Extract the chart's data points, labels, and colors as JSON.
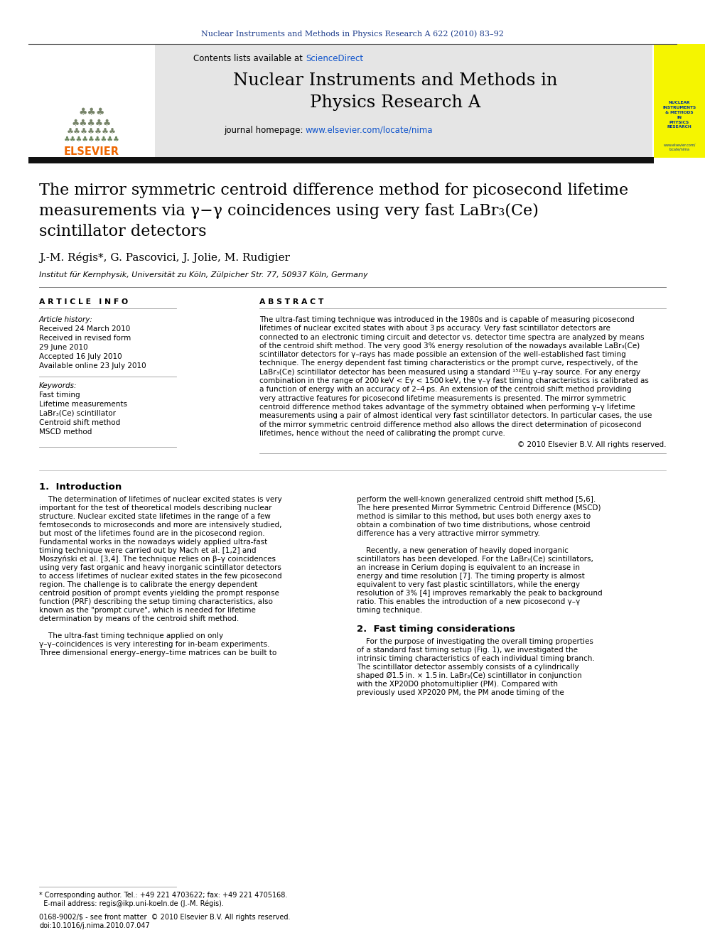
{
  "journal_ref": "Nuclear Instruments and Methods in Physics Research A 622 (2010) 83–92",
  "journal_title_line1": "Nuclear Instruments and Methods in",
  "journal_title_line2": "Physics Research A",
  "paper_title_line1": "The mirror symmetric centroid difference method for picosecond lifetime",
  "paper_title_line2": "measurements via γ−γ coincidences using very fast LaBr₃(Ce)",
  "paper_title_line3": "scintillator detectors",
  "authors": "J.-M. Régis*, G. Pascovici, J. Jolie, M. Rudigier",
  "affiliation": "Institut für Kernphysik, Universität zu Köln, Zülpicher Str. 77, 50937 Köln, Germany",
  "article_info_title": "A R T I C L E   I N F O",
  "abstract_title": "A B S T R A C T",
  "article_history_label": "Article history:",
  "received": "Received 24 March 2010",
  "revised": "Received in revised form",
  "revised2": "29 June 2010",
  "accepted": "Accepted 16 July 2010",
  "available": "Available online 23 July 2010",
  "keywords_label": "Keywords:",
  "kw1": "Fast timing",
  "kw2": "Lifetime measurements",
  "kw3": "LaBr₃(Ce) scintillator",
  "kw4": "Centroid shift method",
  "kw5": "MSCD method",
  "abstract_text": [
    "The ultra-fast timing technique was introduced in the 1980s and is capable of measuring picosecond",
    "lifetimes of nuclear excited states with about 3 ps accuracy. Very fast scintillator detectors are",
    "connected to an electronic timing circuit and detector vs. detector time spectra are analyzed by means",
    "of the centroid shift method. The very good 3% energy resolution of the nowadays available LaBr₃(Ce)",
    "scintillator detectors for γ–rays has made possible an extension of the well-established fast timing",
    "technique. The energy dependent fast timing characteristics or the prompt curve, respectively, of the",
    "LaBr₃(Ce) scintillator detector has been measured using a standard ¹⁵²Eu γ–ray source. For any energy",
    "combination in the range of 200 keV < Eγ < 1500 keV, the γ–γ fast timing characteristics is calibrated as",
    "a function of energy with an accuracy of 2–4 ps. An extension of the centroid shift method providing",
    "very attractive features for picosecond lifetime measurements is presented. The mirror symmetric",
    "centroid difference method takes advantage of the symmetry obtained when performing γ–γ lifetime",
    "measurements using a pair of almost identical very fast scintillator detectors. In particular cases, the use",
    "of the mirror symmetric centroid difference method also allows the direct determination of picosecond",
    "lifetimes, hence without the need of calibrating the prompt curve."
  ],
  "copyright": "© 2010 Elsevier B.V. All rights reserved.",
  "intro_heading": "1.  Introduction",
  "intro_left": [
    "    The determination of lifetimes of nuclear excited states is very",
    "important for the test of theoretical models describing nuclear",
    "structure. Nuclear excited state lifetimes in the range of a few",
    "femtoseconds to microseconds and more are intensively studied,",
    "but most of the lifetimes found are in the picosecond region.",
    "Fundamental works in the nowadays widely applied ultra-fast",
    "timing technique were carried out by Mach et al. [1,2] and",
    "Moszyński et al. [3,4]. The technique relies on β–γ coincidences",
    "using very fast organic and heavy inorganic scintillator detectors",
    "to access lifetimes of nuclear exited states in the few picosecond",
    "region. The challenge is to calibrate the energy dependent",
    "centroid position of prompt events yielding the prompt response",
    "function (PRF) describing the setup timing characteristics, also",
    "known as the \"prompt curve\", which is needed for lifetime",
    "determination by means of the centroid shift method.",
    "",
    "    The ultra-fast timing technique applied on only",
    "γ–γ–coincidences is very interesting for in-beam experiments.",
    "Three dimensional energy–energy–time matrices can be built to"
  ],
  "intro_right": [
    "perform the well-known generalized centroid shift method [5,6].",
    "The here presented Mirror Symmetric Centroid Difference (MSCD)",
    "method is similar to this method, but uses both energy axes to",
    "obtain a combination of two time distributions, whose centroid",
    "difference has a very attractive mirror symmetry.",
    "",
    "    Recently, a new generation of heavily doped inorganic",
    "scintillators has been developed. For the LaBr₃(Ce) scintillators,",
    "an increase in Cerium doping is equivalent to an increase in",
    "energy and time resolution [7]. The timing property is almost",
    "equivalent to very fast plastic scintillators, while the energy",
    "resolution of 3% [4] improves remarkably the peak to background",
    "ratio. This enables the introduction of a new picosecond γ–γ",
    "timing technique."
  ],
  "sec2_heading": "2.  Fast timing considerations",
  "sec2_right": [
    "    For the purpose of investigating the overall timing properties",
    "of a standard fast timing setup (Fig. 1), we investigated the",
    "intrinsic timing characteristics of each individual timing branch.",
    "The scintillator detector assembly consists of a cylindrically",
    "shaped Ø1.5 in. × 1.5 in. LaBr₃(Ce) scintillator in conjunction",
    "with the XP20D0 photomultiplier (PM). Compared with",
    "previously used XP2020 PM, the PM anode timing of the"
  ],
  "footnote_line1": "* Corresponding author. Tel.: +49 221 4703622; fax: +49 221 4705168.",
  "footnote_line2": "  E-mail address: regis@ikp.uni-koeln.de (J.-M. Régis).",
  "issn1": "0168-9002/$ - see front matter  © 2010 Elsevier B.V. All rights reserved.",
  "issn2": "doi:10.1016/j.nima.2010.07.047",
  "journal_color": "#1a3a8a",
  "link_color": "#1155cc",
  "header_bg": "#e5e5e5",
  "yellow_bg": "#f5f500",
  "black_bar_color": "#111111"
}
